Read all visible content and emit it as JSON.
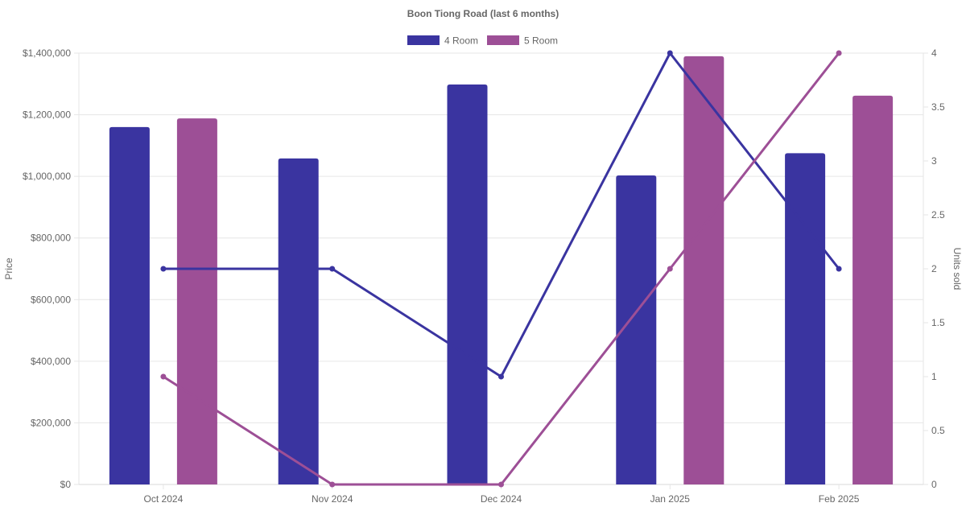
{
  "chart_data": {
    "type": "bar",
    "title": "Boon Tiong Road (last 6 months)",
    "categories": [
      "Oct 2024",
      "Nov 2024",
      "Dec 2024",
      "Jan 2025",
      "Feb 2025"
    ],
    "y_left": {
      "label": "Price",
      "range": [
        0,
        1400000
      ],
      "ticks": [
        0,
        200000,
        400000,
        600000,
        800000,
        1000000,
        1200000,
        1400000
      ],
      "tick_labels": [
        "$0",
        "$200,000",
        "$400,000",
        "$600,000",
        "$800,000",
        "$1,000,000",
        "$1,200,000",
        "$1,400,000"
      ]
    },
    "y_right": {
      "label": "Units sold",
      "range": [
        0,
        4
      ],
      "ticks": [
        0,
        0.5,
        1,
        1.5,
        2,
        2.5,
        3,
        3.5,
        4
      ],
      "tick_labels": [
        "0",
        "0.5",
        "1",
        "1.5",
        "2",
        "2.5",
        "3",
        "3.5",
        "4"
      ]
    },
    "legend": {
      "position": "top-center"
    },
    "grid": true,
    "series": [
      {
        "name": "4 Room",
        "color": "#3a34a0",
        "price": [
          1160000,
          1058000,
          1298000,
          1003000,
          1075000
        ],
        "units": [
          2,
          2,
          1,
          4,
          2
        ]
      },
      {
        "name": "5 Room",
        "color": "#9d4f96",
        "price": [
          1188000,
          null,
          null,
          1390000,
          1262000
        ],
        "units": [
          1,
          0,
          0,
          2,
          4
        ]
      }
    ]
  }
}
